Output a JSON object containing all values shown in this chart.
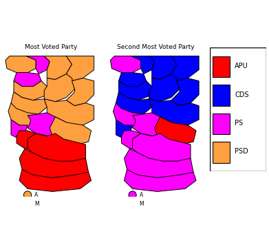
{
  "title_left": "Most Voted Party",
  "title_right": "Second Most Voted Party",
  "colors": {
    "APU": "#FF0000",
    "CDS": "#0000FF",
    "PS": "#FF00FF",
    "PSD": "#FFA040"
  },
  "legend_items": [
    "APU",
    "CDS",
    "PS",
    "PSD"
  ],
  "background": "#FFFFFF",
  "border_color": "#000000",
  "border_lw": 0.7,
  "most_voted": {
    "Viana do Castelo": "PSD",
    "Braga": "PS",
    "Vila Real": "PSD",
    "Braganca": "PSD",
    "Porto": "PS",
    "Aveiro": "PSD",
    "Viseu": "PSD",
    "Guarda": "PSD",
    "Coimbra": "PSD",
    "Castelo Branco": "PSD",
    "Leiria": "PSD",
    "Santarem": "PS",
    "Lisboa": "PS",
    "Setubal": "APU",
    "Portalegre": "PSD",
    "Evora": "APU",
    "Beja": "APU",
    "Faro": "APU",
    "Acores": "PSD",
    "Madeira": "PSD"
  },
  "second_voted": {
    "Viana do Castelo": "PS",
    "Braga": "CDS",
    "Vila Real": "CDS",
    "Braganca": "CDS",
    "Porto": "CDS",
    "Aveiro": "CDS",
    "Viseu": "CDS",
    "Guarda": "CDS",
    "Coimbra": "CDS",
    "Castelo Branco": "CDS",
    "Leiria": "PS",
    "Santarem": "PS",
    "Lisboa": "CDS",
    "Setubal": "PS",
    "Portalegre": "APU",
    "Evora": "PS",
    "Beja": "PS",
    "Faro": "PS",
    "Acores": "PS",
    "Madeira": "PS"
  },
  "fig_width": 3.91,
  "fig_height": 3.46
}
